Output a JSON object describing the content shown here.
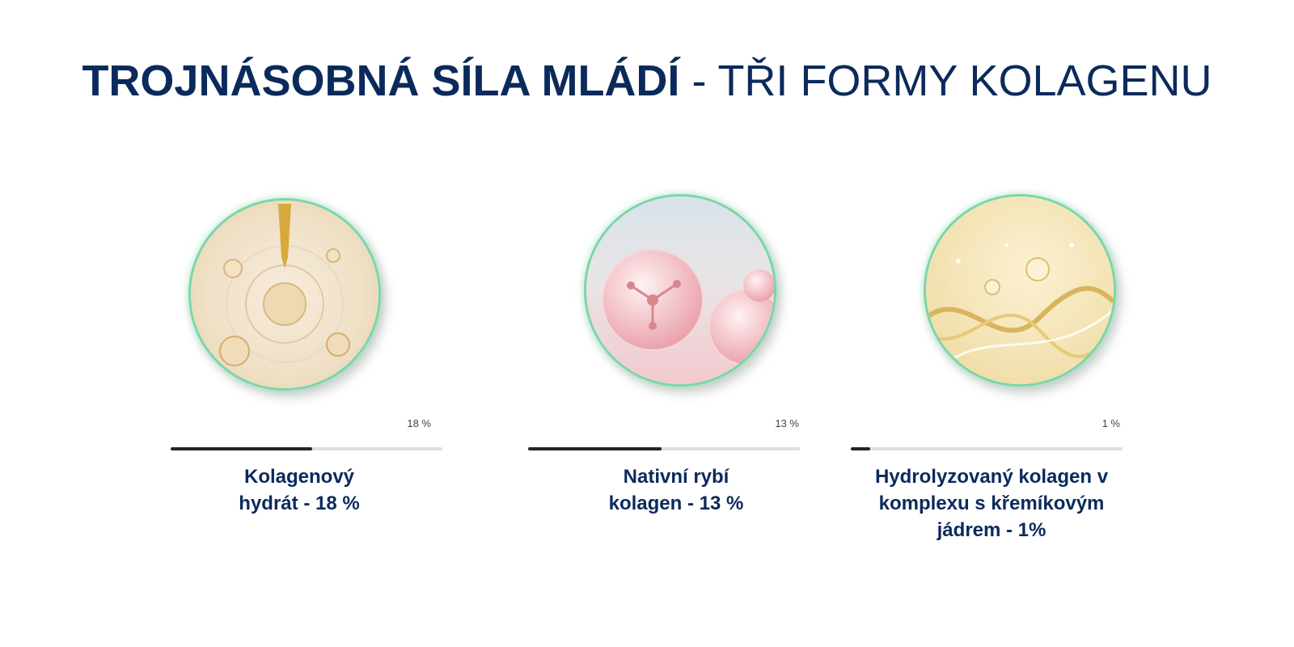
{
  "headline": {
    "bold": "TROJNÁSOBNÁ SÍLA MLÁDÍ",
    "rest": " - TŘI FORMY KOLAGENU",
    "color": "#0b2a5c"
  },
  "accent_ring_color": "#7ad6a6",
  "items": [
    {
      "image_icon": "collagen-serum-droplet-icon",
      "percent_label": "18 %",
      "percent_value": 0.52,
      "label_line1": "Kolagenový",
      "label_line2": "hydrát - 18 %",
      "label_line3": ""
    },
    {
      "image_icon": "pink-molecule-bubbles-icon",
      "percent_label": "13 %",
      "percent_value": 0.49,
      "label_line1": "Nativní rybí",
      "label_line2": "kolagen - 13 %",
      "label_line3": ""
    },
    {
      "image_icon": "golden-dna-helix-icon",
      "percent_label": "1 %",
      "percent_value": 0.07,
      "label_line1": "Hydrolyzovaný kolagen v",
      "label_line2": "komplexu s křemíkovým",
      "label_line3": "jádrem - 1%"
    }
  ]
}
